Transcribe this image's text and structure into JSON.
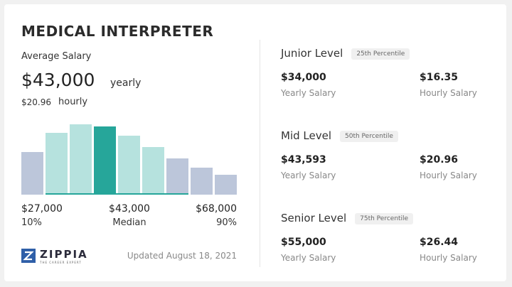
{
  "header": {
    "title": "MEDICAL INTERPRETER"
  },
  "average": {
    "label": "Average Salary",
    "yearly_amount": "$43,000",
    "yearly_unit": "yearly",
    "hourly_amount": "$20.96",
    "hourly_unit": "hourly"
  },
  "distribution": {
    "low": {
      "amount": "$27,000",
      "percentile": "10%"
    },
    "median": {
      "amount": "$43,000",
      "percentile": "Median"
    },
    "high": {
      "amount": "$68,000",
      "percentile": "90%"
    }
  },
  "brand": {
    "name": "ZIPPIA",
    "tagline": "THE CAREER EXPERT"
  },
  "updated": "Updated August 18, 2021",
  "levels": [
    {
      "name": "Junior Level",
      "percentile": "25th Percentile",
      "yearly": "$34,000",
      "yearly_label": "Yearly Salary",
      "hourly": "$16.35",
      "hourly_label": "Hourly Salary"
    },
    {
      "name": "Mid Level",
      "percentile": "50th Percentile",
      "yearly": "$43,593",
      "yearly_label": "Yearly Salary",
      "hourly": "$20.96",
      "hourly_label": "Hourly Salary"
    },
    {
      "name": "Senior Level",
      "percentile": "75th Percentile",
      "yearly": "$55,000",
      "yearly_label": "Yearly Salary",
      "hourly": "$26.44",
      "hourly_label": "Hourly Salary"
    }
  ]
}
